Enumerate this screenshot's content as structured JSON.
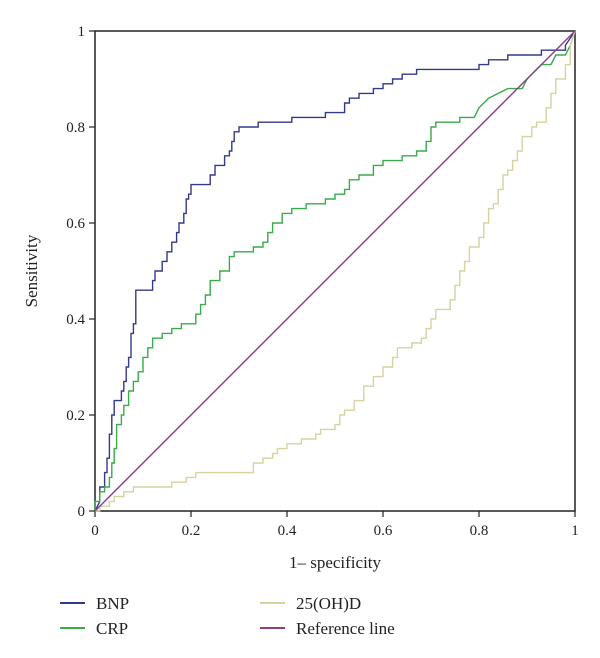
{
  "chart_data": {
    "type": "line",
    "title": "",
    "xlabel": "1– specificity",
    "ylabel": "Sensitivity",
    "xlim": [
      0,
      1
    ],
    "ylim": [
      0,
      1
    ],
    "x_ticks": [
      "0",
      "0.2",
      "0.4",
      "0.6",
      "0.8",
      "1"
    ],
    "y_ticks": [
      "0",
      "0.2",
      "0.4",
      "0.6",
      "0.8",
      "1"
    ],
    "grid": false,
    "legend_position": "bottom",
    "series": [
      {
        "name": "BNP",
        "color": "#343a8a",
        "points": [
          [
            0,
            0
          ],
          [
            0.01,
            0.02
          ],
          [
            0.01,
            0.05
          ],
          [
            0.02,
            0.05
          ],
          [
            0.02,
            0.08
          ],
          [
            0.025,
            0.08
          ],
          [
            0.025,
            0.11
          ],
          [
            0.03,
            0.11
          ],
          [
            0.03,
            0.16
          ],
          [
            0.035,
            0.16
          ],
          [
            0.035,
            0.2
          ],
          [
            0.04,
            0.2
          ],
          [
            0.04,
            0.23
          ],
          [
            0.055,
            0.23
          ],
          [
            0.055,
            0.25
          ],
          [
            0.06,
            0.25
          ],
          [
            0.06,
            0.27
          ],
          [
            0.065,
            0.27
          ],
          [
            0.065,
            0.3
          ],
          [
            0.07,
            0.3
          ],
          [
            0.07,
            0.32
          ],
          [
            0.075,
            0.32
          ],
          [
            0.075,
            0.37
          ],
          [
            0.08,
            0.37
          ],
          [
            0.08,
            0.39
          ],
          [
            0.085,
            0.39
          ],
          [
            0.085,
            0.46
          ],
          [
            0.12,
            0.46
          ],
          [
            0.12,
            0.48
          ],
          [
            0.125,
            0.48
          ],
          [
            0.125,
            0.5
          ],
          [
            0.14,
            0.5
          ],
          [
            0.14,
            0.52
          ],
          [
            0.15,
            0.52
          ],
          [
            0.15,
            0.54
          ],
          [
            0.16,
            0.54
          ],
          [
            0.16,
            0.56
          ],
          [
            0.17,
            0.56
          ],
          [
            0.17,
            0.58
          ],
          [
            0.175,
            0.58
          ],
          [
            0.175,
            0.6
          ],
          [
            0.185,
            0.6
          ],
          [
            0.185,
            0.62
          ],
          [
            0.19,
            0.62
          ],
          [
            0.19,
            0.65
          ],
          [
            0.195,
            0.65
          ],
          [
            0.195,
            0.66
          ],
          [
            0.2,
            0.66
          ],
          [
            0.2,
            0.68
          ],
          [
            0.24,
            0.68
          ],
          [
            0.24,
            0.7
          ],
          [
            0.25,
            0.7
          ],
          [
            0.25,
            0.72
          ],
          [
            0.27,
            0.72
          ],
          [
            0.27,
            0.74
          ],
          [
            0.28,
            0.74
          ],
          [
            0.28,
            0.75
          ],
          [
            0.285,
            0.75
          ],
          [
            0.285,
            0.77
          ],
          [
            0.29,
            0.77
          ],
          [
            0.29,
            0.79
          ],
          [
            0.3,
            0.79
          ],
          [
            0.3,
            0.8
          ],
          [
            0.34,
            0.8
          ],
          [
            0.34,
            0.81
          ],
          [
            0.41,
            0.81
          ],
          [
            0.41,
            0.82
          ],
          [
            0.48,
            0.82
          ],
          [
            0.48,
            0.83
          ],
          [
            0.52,
            0.83
          ],
          [
            0.52,
            0.85
          ],
          [
            0.53,
            0.85
          ],
          [
            0.53,
            0.86
          ],
          [
            0.55,
            0.86
          ],
          [
            0.55,
            0.87
          ],
          [
            0.58,
            0.87
          ],
          [
            0.58,
            0.88
          ],
          [
            0.6,
            0.88
          ],
          [
            0.6,
            0.89
          ],
          [
            0.62,
            0.89
          ],
          [
            0.62,
            0.9
          ],
          [
            0.64,
            0.9
          ],
          [
            0.64,
            0.91
          ],
          [
            0.67,
            0.91
          ],
          [
            0.67,
            0.92
          ],
          [
            0.8,
            0.92
          ],
          [
            0.8,
            0.93
          ],
          [
            0.82,
            0.93
          ],
          [
            0.82,
            0.94
          ],
          [
            0.86,
            0.94
          ],
          [
            0.86,
            0.95
          ],
          [
            0.93,
            0.95
          ],
          [
            0.93,
            0.96
          ],
          [
            0.98,
            0.96
          ],
          [
            0.98,
            0.97
          ],
          [
            1,
            1
          ]
        ]
      },
      {
        "name": "CRP",
        "color": "#3aaa4a",
        "points": [
          [
            0,
            0
          ],
          [
            0,
            0.02
          ],
          [
            0.01,
            0.02
          ],
          [
            0.01,
            0.04
          ],
          [
            0.02,
            0.04
          ],
          [
            0.02,
            0.05
          ],
          [
            0.03,
            0.05
          ],
          [
            0.03,
            0.07
          ],
          [
            0.035,
            0.07
          ],
          [
            0.035,
            0.1
          ],
          [
            0.04,
            0.1
          ],
          [
            0.04,
            0.13
          ],
          [
            0.045,
            0.13
          ],
          [
            0.045,
            0.18
          ],
          [
            0.055,
            0.18
          ],
          [
            0.055,
            0.2
          ],
          [
            0.06,
            0.2
          ],
          [
            0.06,
            0.22
          ],
          [
            0.07,
            0.22
          ],
          [
            0.07,
            0.25
          ],
          [
            0.08,
            0.25
          ],
          [
            0.08,
            0.27
          ],
          [
            0.09,
            0.27
          ],
          [
            0.09,
            0.29
          ],
          [
            0.1,
            0.29
          ],
          [
            0.1,
            0.32
          ],
          [
            0.11,
            0.32
          ],
          [
            0.11,
            0.34
          ],
          [
            0.12,
            0.34
          ],
          [
            0.12,
            0.36
          ],
          [
            0.14,
            0.36
          ],
          [
            0.14,
            0.37
          ],
          [
            0.16,
            0.37
          ],
          [
            0.16,
            0.38
          ],
          [
            0.18,
            0.38
          ],
          [
            0.18,
            0.39
          ],
          [
            0.21,
            0.39
          ],
          [
            0.21,
            0.41
          ],
          [
            0.22,
            0.41
          ],
          [
            0.22,
            0.43
          ],
          [
            0.23,
            0.43
          ],
          [
            0.23,
            0.45
          ],
          [
            0.24,
            0.45
          ],
          [
            0.24,
            0.48
          ],
          [
            0.26,
            0.48
          ],
          [
            0.26,
            0.5
          ],
          [
            0.28,
            0.5
          ],
          [
            0.28,
            0.53
          ],
          [
            0.29,
            0.53
          ],
          [
            0.29,
            0.54
          ],
          [
            0.33,
            0.54
          ],
          [
            0.33,
            0.55
          ],
          [
            0.35,
            0.55
          ],
          [
            0.35,
            0.56
          ],
          [
            0.36,
            0.56
          ],
          [
            0.36,
            0.58
          ],
          [
            0.37,
            0.58
          ],
          [
            0.37,
            0.6
          ],
          [
            0.39,
            0.6
          ],
          [
            0.39,
            0.62
          ],
          [
            0.41,
            0.62
          ],
          [
            0.41,
            0.63
          ],
          [
            0.44,
            0.63
          ],
          [
            0.44,
            0.64
          ],
          [
            0.48,
            0.64
          ],
          [
            0.48,
            0.65
          ],
          [
            0.5,
            0.65
          ],
          [
            0.5,
            0.66
          ],
          [
            0.52,
            0.66
          ],
          [
            0.52,
            0.67
          ],
          [
            0.53,
            0.67
          ],
          [
            0.53,
            0.69
          ],
          [
            0.55,
            0.69
          ],
          [
            0.55,
            0.7
          ],
          [
            0.58,
            0.7
          ],
          [
            0.58,
            0.72
          ],
          [
            0.6,
            0.72
          ],
          [
            0.6,
            0.73
          ],
          [
            0.64,
            0.73
          ],
          [
            0.64,
            0.74
          ],
          [
            0.67,
            0.74
          ],
          [
            0.67,
            0.75
          ],
          [
            0.69,
            0.75
          ],
          [
            0.69,
            0.77
          ],
          [
            0.7,
            0.77
          ],
          [
            0.7,
            0.8
          ],
          [
            0.71,
            0.8
          ],
          [
            0.71,
            0.81
          ],
          [
            0.76,
            0.81
          ],
          [
            0.76,
            0.82
          ],
          [
            0.79,
            0.82
          ],
          [
            0.8,
            0.84
          ],
          [
            0.82,
            0.86
          ],
          [
            0.84,
            0.87
          ],
          [
            0.86,
            0.88
          ],
          [
            0.89,
            0.88
          ],
          [
            0.9,
            0.9
          ],
          [
            0.92,
            0.92
          ],
          [
            0.93,
            0.93
          ],
          [
            0.95,
            0.93
          ],
          [
            0.96,
            0.95
          ],
          [
            0.98,
            0.95
          ],
          [
            0.99,
            0.97
          ],
          [
            1,
            1
          ]
        ]
      },
      {
        "name": "25(OH)D",
        "color": "#d6d3a0",
        "points": [
          [
            0,
            0
          ],
          [
            0.01,
            0
          ],
          [
            0.01,
            0.01
          ],
          [
            0.03,
            0.01
          ],
          [
            0.03,
            0.02
          ],
          [
            0.04,
            0.02
          ],
          [
            0.04,
            0.03
          ],
          [
            0.06,
            0.03
          ],
          [
            0.06,
            0.04
          ],
          [
            0.08,
            0.04
          ],
          [
            0.08,
            0.05
          ],
          [
            0.16,
            0.05
          ],
          [
            0.16,
            0.06
          ],
          [
            0.19,
            0.06
          ],
          [
            0.19,
            0.07
          ],
          [
            0.21,
            0.07
          ],
          [
            0.21,
            0.08
          ],
          [
            0.33,
            0.08
          ],
          [
            0.33,
            0.1
          ],
          [
            0.35,
            0.1
          ],
          [
            0.35,
            0.11
          ],
          [
            0.37,
            0.11
          ],
          [
            0.37,
            0.12
          ],
          [
            0.38,
            0.12
          ],
          [
            0.38,
            0.13
          ],
          [
            0.4,
            0.13
          ],
          [
            0.4,
            0.14
          ],
          [
            0.43,
            0.14
          ],
          [
            0.43,
            0.15
          ],
          [
            0.46,
            0.15
          ],
          [
            0.46,
            0.16
          ],
          [
            0.47,
            0.16
          ],
          [
            0.47,
            0.17
          ],
          [
            0.5,
            0.17
          ],
          [
            0.5,
            0.18
          ],
          [
            0.51,
            0.18
          ],
          [
            0.51,
            0.2
          ],
          [
            0.52,
            0.2
          ],
          [
            0.52,
            0.21
          ],
          [
            0.54,
            0.21
          ],
          [
            0.54,
            0.23
          ],
          [
            0.56,
            0.23
          ],
          [
            0.56,
            0.26
          ],
          [
            0.58,
            0.26
          ],
          [
            0.58,
            0.28
          ],
          [
            0.6,
            0.28
          ],
          [
            0.6,
            0.3
          ],
          [
            0.62,
            0.3
          ],
          [
            0.62,
            0.32
          ],
          [
            0.63,
            0.32
          ],
          [
            0.63,
            0.34
          ],
          [
            0.66,
            0.34
          ],
          [
            0.66,
            0.35
          ],
          [
            0.68,
            0.35
          ],
          [
            0.68,
            0.36
          ],
          [
            0.69,
            0.36
          ],
          [
            0.69,
            0.38
          ],
          [
            0.7,
            0.38
          ],
          [
            0.7,
            0.4
          ],
          [
            0.71,
            0.4
          ],
          [
            0.71,
            0.42
          ],
          [
            0.74,
            0.42
          ],
          [
            0.74,
            0.44
          ],
          [
            0.75,
            0.44
          ],
          [
            0.75,
            0.47
          ],
          [
            0.76,
            0.47
          ],
          [
            0.76,
            0.5
          ],
          [
            0.77,
            0.5
          ],
          [
            0.77,
            0.52
          ],
          [
            0.78,
            0.52
          ],
          [
            0.78,
            0.55
          ],
          [
            0.8,
            0.55
          ],
          [
            0.8,
            0.57
          ],
          [
            0.81,
            0.57
          ],
          [
            0.81,
            0.6
          ],
          [
            0.82,
            0.6
          ],
          [
            0.82,
            0.63
          ],
          [
            0.83,
            0.63
          ],
          [
            0.83,
            0.64
          ],
          [
            0.84,
            0.64
          ],
          [
            0.84,
            0.67
          ],
          [
            0.85,
            0.67
          ],
          [
            0.85,
            0.7
          ],
          [
            0.86,
            0.7
          ],
          [
            0.86,
            0.71
          ],
          [
            0.87,
            0.71
          ],
          [
            0.87,
            0.73
          ],
          [
            0.88,
            0.73
          ],
          [
            0.88,
            0.75
          ],
          [
            0.89,
            0.75
          ],
          [
            0.89,
            0.78
          ],
          [
            0.91,
            0.78
          ],
          [
            0.91,
            0.8
          ],
          [
            0.92,
            0.8
          ],
          [
            0.92,
            0.81
          ],
          [
            0.94,
            0.81
          ],
          [
            0.94,
            0.84
          ],
          [
            0.95,
            0.84
          ],
          [
            0.95,
            0.87
          ],
          [
            0.96,
            0.87
          ],
          [
            0.96,
            0.9
          ],
          [
            0.98,
            0.9
          ],
          [
            0.98,
            0.93
          ],
          [
            0.99,
            0.93
          ],
          [
            0.99,
            0.97
          ],
          [
            1,
            1
          ]
        ]
      },
      {
        "name": "Reference line",
        "color": "#8e3a8e",
        "points": [
          [
            0,
            0
          ],
          [
            1,
            1
          ]
        ]
      }
    ]
  }
}
